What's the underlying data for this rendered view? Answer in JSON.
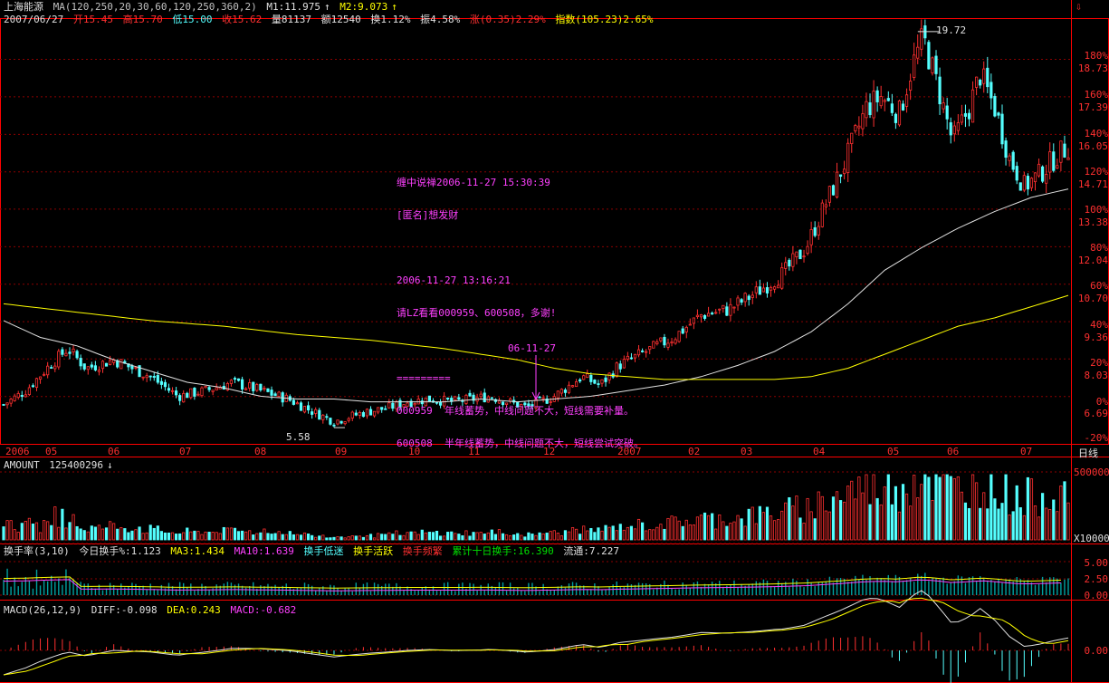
{
  "header": {
    "stock_name": "上海能源",
    "ma_label": "MA(120,250,20,30,60,120,250,360,2)",
    "m1": "M1:11.975",
    "m2": "M2:9.073",
    "date": "2007/06/27",
    "open": "开15.45",
    "high": "高15.70",
    "low": "低15.00",
    "close": "收15.62",
    "volume": "量81137",
    "amount": "额12540",
    "turnover": "换1.12%",
    "amplitude": "振4.58%",
    "change": "涨(0.35)2.29%",
    "index": "指数(105.23)2.65%"
  },
  "corner_icon": "down-arrow-icon",
  "annotation_lines": [
    "缠中说禅2006-11-27 15:30:39",
    "[匿名]想发财",
    "",
    "2006-11-27 13:16:21",
    "请LZ看看000959、600508，多谢!",
    "",
    "=========",
    "000959  年线蓄势，中线问题不大，短线需要补量。",
    "600508  半年线蓄势，中线问题不大，短线尝试突破。"
  ],
  "marker_label": "06-11-27",
  "high_label": "19.72",
  "low_label": "5.58",
  "price_axis": {
    "percent_labels": [
      "180%",
      "160%",
      "140%",
      "120%",
      "100%",
      "80%",
      "60%",
      "40%",
      "20%",
      "0%",
      "-20%"
    ],
    "price_labels": [
      "18.73",
      "17.39",
      "16.05",
      "14.71",
      "13.38",
      "12.04",
      "10.70",
      "9.36",
      "8.03",
      "6.69"
    ]
  },
  "x_axis": {
    "labels": [
      "2006",
      "05",
      "06",
      "07",
      "08",
      "09",
      "10",
      "11",
      "12",
      "2007",
      "02",
      "03",
      "04",
      "05",
      "06",
      "07"
    ],
    "period": "日线"
  },
  "amount_panel": {
    "title": "AMOUNT",
    "value": "125400296",
    "top_label": "500000",
    "unit": "X10000"
  },
  "turnover_panel": {
    "title": "换手率(3,10)",
    "today": "今日换手%:1.123",
    "ma3": "MA3:1.434",
    "ma10": "MA10:1.639",
    "low": "换手低迷",
    "active": "换手活跃",
    "frequent": "换手频繁",
    "cum10": "累计十日换手:16.390",
    "float": "流通:7.227",
    "labels": [
      "5.00",
      "2.50",
      "0.00"
    ]
  },
  "macd_panel": {
    "title": "MACD(26,12,9)",
    "diff": "DIFF:-0.098",
    "dea": "DEA:0.243",
    "macd": "MACD:-0.682",
    "label": "0.00"
  },
  "colors": {
    "up": "#ff3030",
    "down": "#54ffff",
    "ma_white": "#e0e0e0",
    "ma_yellow": "#ffff00",
    "grid": "#8b0000",
    "border": "#ff0000",
    "annotation": "#ff40ff"
  },
  "chart_data": {
    "type": "candlestick",
    "price_range": [
      5.0,
      20.2
    ],
    "base_price": 6.69,
    "max": {
      "date": "2007-05-29",
      "price": 19.72
    },
    "min": {
      "date": "2006-08-09",
      "price": 5.58
    },
    "price_path": [
      [
        0,
        6.4
      ],
      [
        12,
        6.9
      ],
      [
        25,
        7.8
      ],
      [
        35,
        8.4
      ],
      [
        45,
        7.7
      ],
      [
        60,
        8.0
      ],
      [
        80,
        7.4
      ],
      [
        95,
        6.7
      ],
      [
        110,
        6.9
      ],
      [
        125,
        7.2
      ],
      [
        140,
        6.9
      ],
      [
        155,
        6.6
      ],
      [
        170,
        6.1
      ],
      [
        180,
        5.8
      ],
      [
        195,
        6.1
      ],
      [
        210,
        6.3
      ],
      [
        220,
        6.5
      ],
      [
        232,
        6.6
      ],
      [
        245,
        6.5
      ],
      [
        265,
        6.7
      ],
      [
        285,
        6.3
      ],
      [
        300,
        6.7
      ],
      [
        315,
        7.4
      ],
      [
        325,
        7.1
      ],
      [
        335,
        7.8
      ],
      [
        350,
        8.3
      ],
      [
        365,
        8.8
      ],
      [
        380,
        9.6
      ],
      [
        395,
        9.8
      ],
      [
        410,
        10.4
      ],
      [
        425,
        11.1
      ],
      [
        437,
        12.0
      ],
      [
        448,
        13.6
      ],
      [
        458,
        15.0
      ],
      [
        470,
        17.0
      ],
      [
        478,
        17.4
      ],
      [
        488,
        16.8
      ],
      [
        495,
        18.5
      ],
      [
        501,
        19.5
      ],
      [
        510,
        17.5
      ],
      [
        517,
        15.8
      ],
      [
        526,
        17.0
      ],
      [
        532,
        18.2
      ],
      [
        540,
        17.0
      ],
      [
        548,
        15.2
      ],
      [
        556,
        14.2
      ],
      [
        564,
        14.6
      ],
      [
        574,
        15.3
      ],
      [
        580,
        15.62
      ]
    ],
    "ma_white_path": [
      [
        0,
        9.4
      ],
      [
        20,
        8.8
      ],
      [
        40,
        8.5
      ],
      [
        60,
        8.0
      ],
      [
        80,
        7.6
      ],
      [
        100,
        7.2
      ],
      [
        120,
        7.0
      ],
      [
        140,
        6.7
      ],
      [
        160,
        6.6
      ],
      [
        180,
        6.6
      ],
      [
        200,
        6.5
      ],
      [
        220,
        6.5
      ],
      [
        240,
        6.5
      ],
      [
        260,
        6.6
      ],
      [
        280,
        6.5
      ],
      [
        300,
        6.6
      ],
      [
        320,
        6.7
      ],
      [
        340,
        6.9
      ],
      [
        360,
        7.1
      ],
      [
        380,
        7.4
      ],
      [
        400,
        7.8
      ],
      [
        420,
        8.3
      ],
      [
        440,
        9.0
      ],
      [
        460,
        10.0
      ],
      [
        480,
        11.2
      ],
      [
        500,
        12.0
      ],
      [
        520,
        12.7
      ],
      [
        540,
        13.3
      ],
      [
        560,
        13.8
      ],
      [
        580,
        14.1
      ]
    ],
    "ma_yellow_path": [
      [
        0,
        10.0
      ],
      [
        40,
        9.7
      ],
      [
        80,
        9.4
      ],
      [
        120,
        9.2
      ],
      [
        160,
        8.9
      ],
      [
        200,
        8.7
      ],
      [
        240,
        8.4
      ],
      [
        280,
        8.0
      ],
      [
        300,
        7.7
      ],
      [
        320,
        7.5
      ],
      [
        340,
        7.4
      ],
      [
        360,
        7.3
      ],
      [
        380,
        7.3
      ],
      [
        400,
        7.3
      ],
      [
        420,
        7.3
      ],
      [
        440,
        7.4
      ],
      [
        460,
        7.7
      ],
      [
        480,
        8.2
      ],
      [
        500,
        8.7
      ],
      [
        520,
        9.2
      ],
      [
        540,
        9.5
      ],
      [
        560,
        9.9
      ],
      [
        580,
        10.3
      ]
    ],
    "trading_days": 580
  }
}
